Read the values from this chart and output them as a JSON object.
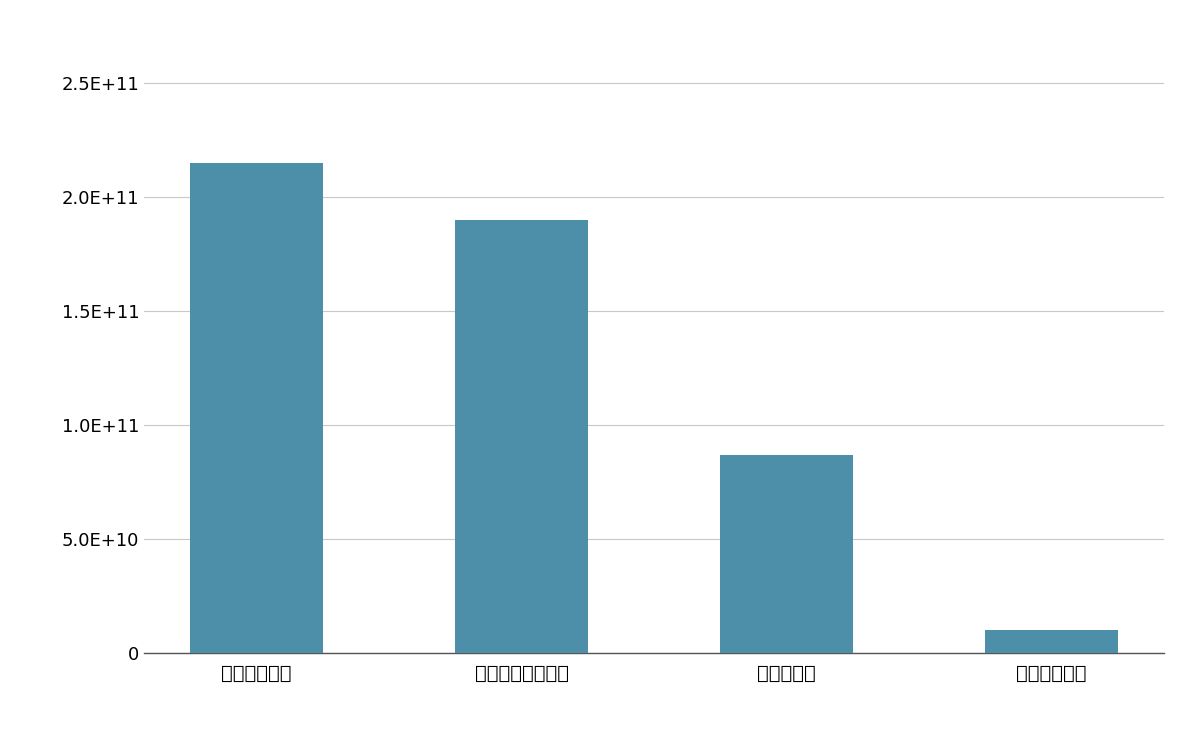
{
  "categories": [
    "日本オラクル",
    "トレンドマイクロ",
    "オービック",
    "ジャパニアス"
  ],
  "values": [
    215000000000.0,
    190000000000.0,
    87000000000.0,
    10000000000.0
  ],
  "bar_color": "#4d8fa8",
  "background_color": "#ffffff",
  "grid_color": "#c8c8c8",
  "ylim": [
    0,
    270000000000.0
  ],
  "yticks": [
    0,
    50000000000.0,
    100000000000.0,
    150000000000.0,
    200000000000.0,
    250000000000.0
  ],
  "ytick_labels": [
    "0",
    "5.0E+10",
    "1.0E+11",
    "1.5E+11",
    "2.0E+11",
    "2.5E+11"
  ],
  "tick_fontsize": 13,
  "label_fontsize": 14,
  "bar_width": 0.5
}
